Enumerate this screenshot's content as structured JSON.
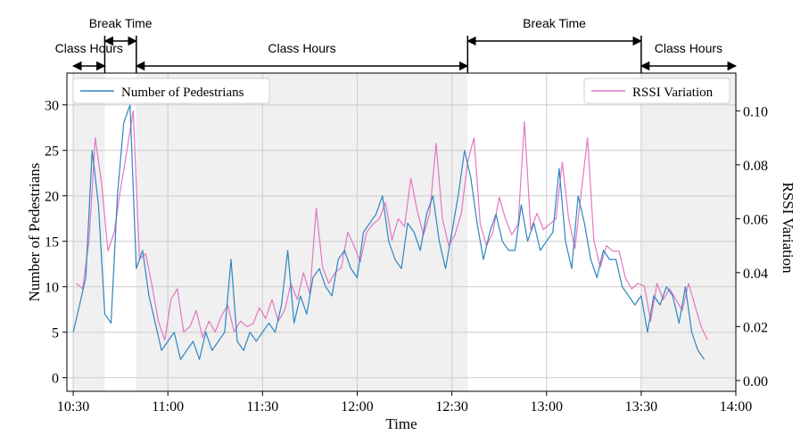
{
  "chart_data": {
    "type": "line",
    "periods": [
      {
        "label": "Class Hours",
        "start": "10:30",
        "end": "10:40",
        "shaded": true
      },
      {
        "label": "Break Time",
        "start": "10:40",
        "end": "10:50",
        "shaded": false
      },
      {
        "label": "Class Hours",
        "start": "10:50",
        "end": "12:35",
        "shaded": true
      },
      {
        "label": "Break Time",
        "start": "12:35",
        "end": "13:30",
        "shaded": false
      },
      {
        "label": "Class Hours",
        "start": "13:30",
        "end": "14:00",
        "shaded": true
      }
    ],
    "xlabel": "Time",
    "ylabel_left": "Number of Pedestrians",
    "ylabel_right": "RSSI Variation",
    "xlim": [
      "10:28",
      "14:00"
    ],
    "ylim_left": [
      -1.5,
      33.5
    ],
    "ylim_right": [
      -0.004,
      0.114
    ],
    "x_ticks": [
      "10:30",
      "11:00",
      "11:30",
      "12:00",
      "12:30",
      "13:00",
      "13:30",
      "14:00"
    ],
    "y_ticks_left": [
      "0",
      "5",
      "10",
      "15",
      "20",
      "25",
      "30"
    ],
    "y_ticks_right": [
      "0.00",
      "0.02",
      "0.04",
      "0.06",
      "0.08",
      "0.10"
    ],
    "grid": true,
    "legend_left": "top-left",
    "legend_right": "top-right",
    "series": [
      {
        "name": "Number of Pedestrians",
        "axis": "left",
        "color": "#2e86c1",
        "x_start": "10:30",
        "x_step_minutes": 2,
        "values": [
          5,
          8,
          11,
          25,
          19,
          7,
          6,
          20,
          28,
          30,
          12,
          14,
          9,
          6,
          3,
          4,
          5,
          2,
          3,
          4,
          2,
          5,
          3,
          4,
          5,
          13,
          4,
          3,
          5,
          4,
          5,
          6,
          5,
          8,
          14,
          6,
          9,
          7,
          11,
          12,
          10,
          9,
          13,
          14,
          12,
          11,
          16,
          17,
          18,
          20,
          15,
          13,
          12,
          17,
          16,
          14,
          18,
          20,
          15,
          12,
          16,
          20,
          25,
          22,
          17,
          13,
          16,
          18,
          15,
          14,
          14,
          19,
          15,
          17,
          14,
          15,
          16,
          23,
          15,
          12,
          20,
          17,
          13,
          11,
          14,
          13,
          13,
          10,
          9,
          8,
          9,
          5,
          9,
          8,
          10,
          9,
          6,
          10,
          5,
          3,
          2
        ]
      },
      {
        "name": "RSSI Variation",
        "axis": "right",
        "color": "#e377c2",
        "x_start": "10:31",
        "x_step_minutes": 2,
        "values": [
          0.036,
          0.034,
          0.052,
          0.09,
          0.073,
          0.048,
          0.055,
          0.071,
          0.085,
          0.1,
          0.045,
          0.047,
          0.035,
          0.022,
          0.015,
          0.03,
          0.034,
          0.018,
          0.02,
          0.026,
          0.016,
          0.022,
          0.018,
          0.024,
          0.028,
          0.018,
          0.022,
          0.02,
          0.021,
          0.027,
          0.023,
          0.03,
          0.022,
          0.026,
          0.036,
          0.03,
          0.04,
          0.032,
          0.064,
          0.042,
          0.036,
          0.04,
          0.042,
          0.055,
          0.05,
          0.044,
          0.055,
          0.058,
          0.06,
          0.066,
          0.052,
          0.06,
          0.057,
          0.075,
          0.063,
          0.054,
          0.062,
          0.088,
          0.06,
          0.05,
          0.054,
          0.062,
          0.081,
          0.09,
          0.058,
          0.05,
          0.055,
          0.068,
          0.06,
          0.054,
          0.058,
          0.096,
          0.056,
          0.062,
          0.056,
          0.058,
          0.06,
          0.081,
          0.06,
          0.049,
          0.07,
          0.09,
          0.052,
          0.042,
          0.05,
          0.048,
          0.048,
          0.038,
          0.034,
          0.036,
          0.035,
          0.022,
          0.036,
          0.03,
          0.034,
          0.03,
          0.026,
          0.036,
          0.028,
          0.02,
          0.015
        ]
      }
    ]
  }
}
